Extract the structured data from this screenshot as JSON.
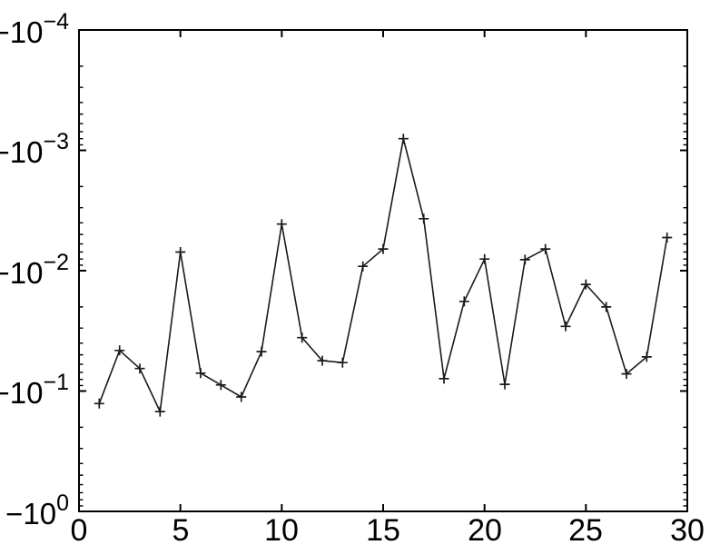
{
  "chart_data": {
    "type": "line",
    "title": "",
    "xlabel": "",
    "ylabel": "",
    "marker": "+",
    "line_color": "#1a1a1a",
    "axis_color": "#000000",
    "background": "#ffffff",
    "grid": false,
    "legend": null,
    "xlim": [
      0,
      30
    ],
    "y_scale": "negative-log",
    "ylim_exponents": [
      -4,
      0
    ],
    "x": [
      1,
      2,
      3,
      4,
      5,
      6,
      7,
      8,
      9,
      10,
      11,
      12,
      13,
      14,
      15,
      16,
      17,
      18,
      19,
      20,
      21,
      22,
      23,
      24,
      25,
      26,
      27,
      28,
      29
    ],
    "y": [
      -0.127,
      -0.046,
      -0.065,
      -0.148,
      -0.007,
      -0.071,
      -0.089,
      -0.112,
      -0.047,
      -0.0041,
      -0.036,
      -0.056,
      -0.058,
      -0.0092,
      -0.0066,
      -0.0008,
      -0.0037,
      -0.079,
      -0.018,
      -0.008,
      -0.088,
      -0.0081,
      -0.0066,
      -0.029,
      -0.013,
      -0.02,
      -0.072,
      -0.052,
      -0.0053
    ],
    "x_tick_values": [
      0,
      5,
      10,
      15,
      20,
      25,
      30
    ],
    "x_tick_labels": [
      "0",
      "5",
      "10",
      "15",
      "20",
      "25",
      "30"
    ],
    "y_tick_exponents": [
      -4,
      -3,
      -2,
      -1,
      0
    ],
    "y_ticks": [
      {
        "base": "−10",
        "exp": "−4"
      },
      {
        "base": "−10",
        "exp": "−3"
      },
      {
        "base": "−10",
        "exp": "−2"
      },
      {
        "base": "−10",
        "exp": "−1"
      },
      {
        "base": "−10",
        "exp": "0"
      }
    ]
  }
}
